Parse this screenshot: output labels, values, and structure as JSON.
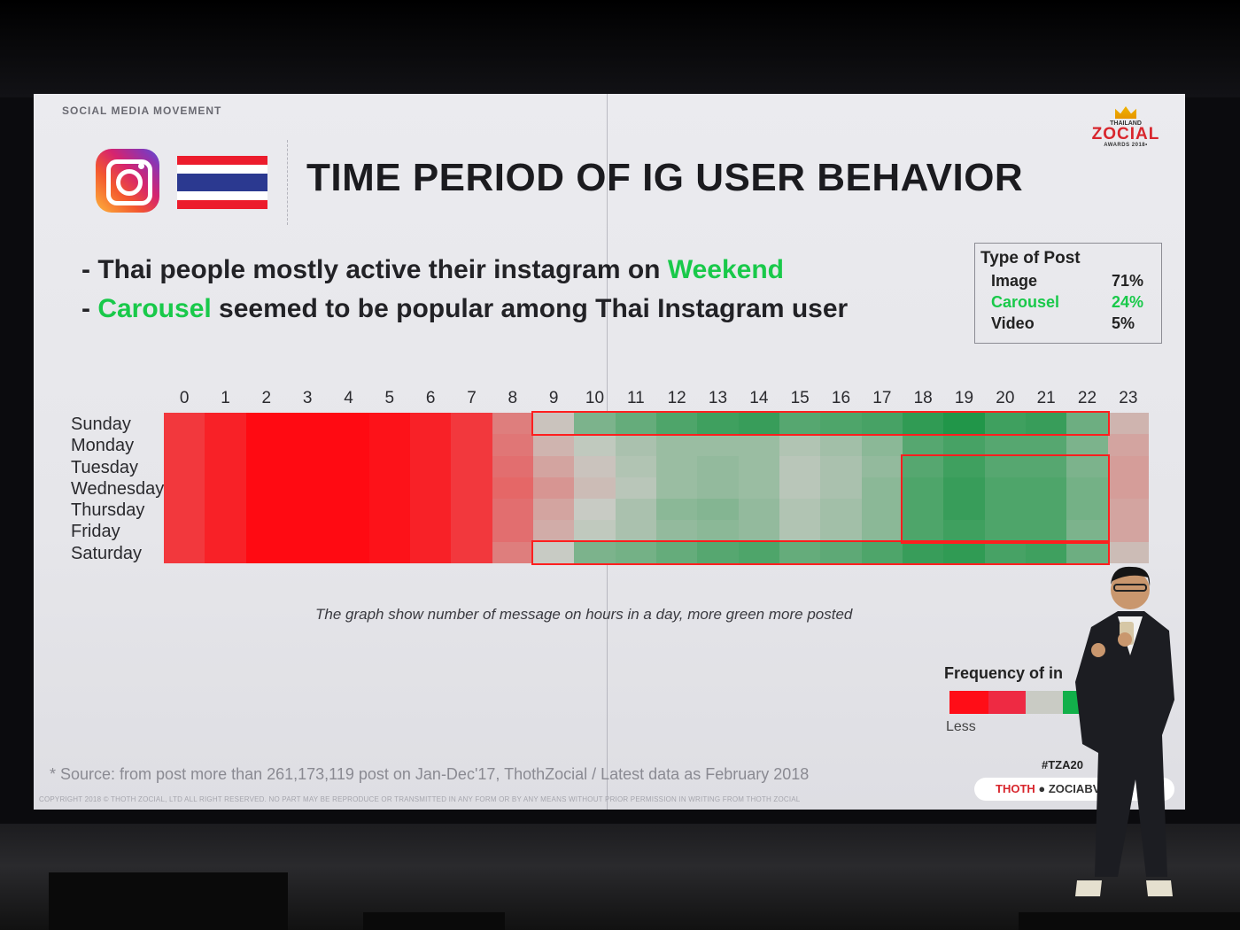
{
  "slide": {
    "brand": "SOCIAL MEDIA MOVEMENT",
    "title": "TIME PERIOD OF IG USER BEHAVIOR",
    "award": {
      "line1": "THAILAND",
      "line2": "ZOCIAL",
      "line3": "AWARDS 2018•"
    },
    "bullet1": {
      "prefix": "- Thai people mostly active their instagram on ",
      "highlight": "Weekend"
    },
    "bullet2": {
      "dash": "- ",
      "highlight": "Carousel",
      "suffix": " seemed to be popular among Thai Instagram user"
    },
    "type_of_post": {
      "header": "Type of Post",
      "rows": [
        {
          "label": "Image",
          "value": "71%"
        },
        {
          "label": "Carousel",
          "value": "24%"
        },
        {
          "label": "Video",
          "value": "5%"
        }
      ]
    },
    "caption": "The graph show number of message on hours in a day, more green more posted",
    "frequency_label": "Frequency of in",
    "legend_less": "Less",
    "source": "* Source: from post more than 261,173,119 post on Jan-Dec'17, ThothZocial / Latest data as  February 2018",
    "copyright": "COPYRIGHT 2018 © THOTH ZOCIAL, LTD ALL RIGHT RESERVED. NO PART MAY BE REPRODUCE OR TRANSMITTED IN ANY FORM OR BY ANY MEANS WITHOUT PRIOR PERMISSION IN WRITING FROM THOTH ZOCIAL",
    "hashtag": "#TZA20",
    "footer_pill": {
      "part1": "THOTH",
      "part2": " ● ZOCIA",
      "part3": "BV"
    }
  },
  "colors": {
    "accent_green": "#19c94a",
    "highlight_red": "#ff1f1f",
    "award_red": "#d8262d"
  },
  "chart_data": {
    "type": "heatmap",
    "x": [
      "0",
      "1",
      "2",
      "3",
      "4",
      "5",
      "6",
      "7",
      "8",
      "9",
      "10",
      "11",
      "12",
      "13",
      "14",
      "15",
      "16",
      "17",
      "18",
      "19",
      "20",
      "21",
      "22",
      "23"
    ],
    "y": [
      "Sunday",
      "Monday",
      "Tuesday",
      "Wednesday",
      "Thursday",
      "Friday",
      "Saturday"
    ],
    "note": "values are relative activity, 0 = least (red) to 1 = most (green)",
    "values": [
      [
        0.12,
        0.06,
        0.0,
        0.0,
        0.0,
        0.02,
        0.06,
        0.12,
        0.3,
        0.48,
        0.7,
        0.76,
        0.82,
        0.86,
        0.88,
        0.8,
        0.82,
        0.84,
        0.9,
        0.94,
        0.86,
        0.88,
        0.74,
        0.44
      ],
      [
        0.12,
        0.06,
        0.0,
        0.0,
        0.0,
        0.02,
        0.06,
        0.12,
        0.28,
        0.44,
        0.52,
        0.58,
        0.62,
        0.62,
        0.62,
        0.56,
        0.6,
        0.66,
        0.8,
        0.84,
        0.8,
        0.8,
        0.7,
        0.4
      ],
      [
        0.12,
        0.06,
        0.0,
        0.0,
        0.0,
        0.02,
        0.06,
        0.12,
        0.26,
        0.4,
        0.48,
        0.56,
        0.62,
        0.64,
        0.62,
        0.54,
        0.58,
        0.64,
        0.8,
        0.86,
        0.8,
        0.8,
        0.7,
        0.38
      ],
      [
        0.12,
        0.06,
        0.0,
        0.0,
        0.0,
        0.02,
        0.06,
        0.12,
        0.24,
        0.36,
        0.46,
        0.54,
        0.62,
        0.64,
        0.62,
        0.54,
        0.58,
        0.66,
        0.82,
        0.88,
        0.82,
        0.82,
        0.72,
        0.38
      ],
      [
        0.12,
        0.06,
        0.0,
        0.0,
        0.0,
        0.02,
        0.06,
        0.12,
        0.26,
        0.4,
        0.5,
        0.58,
        0.66,
        0.68,
        0.64,
        0.56,
        0.6,
        0.66,
        0.82,
        0.88,
        0.82,
        0.82,
        0.72,
        0.4
      ],
      [
        0.12,
        0.06,
        0.0,
        0.0,
        0.0,
        0.02,
        0.06,
        0.12,
        0.26,
        0.42,
        0.52,
        0.58,
        0.64,
        0.66,
        0.64,
        0.56,
        0.6,
        0.66,
        0.82,
        0.86,
        0.82,
        0.82,
        0.7,
        0.4
      ],
      [
        0.12,
        0.06,
        0.0,
        0.0,
        0.0,
        0.02,
        0.06,
        0.12,
        0.3,
        0.5,
        0.7,
        0.72,
        0.76,
        0.8,
        0.82,
        0.76,
        0.78,
        0.82,
        0.88,
        0.9,
        0.84,
        0.86,
        0.74,
        0.46
      ]
    ],
    "highlight_regions": [
      {
        "row": "Sunday",
        "from_hour": 9,
        "to_hour": 22
      },
      {
        "rows": [
          "Tuesday",
          "Friday"
        ],
        "from_hour": 18,
        "to_hour": 22
      },
      {
        "row": "Saturday",
        "from_hour": 9,
        "to_hour": 22
      }
    ],
    "legend": [
      "Less"
    ]
  }
}
